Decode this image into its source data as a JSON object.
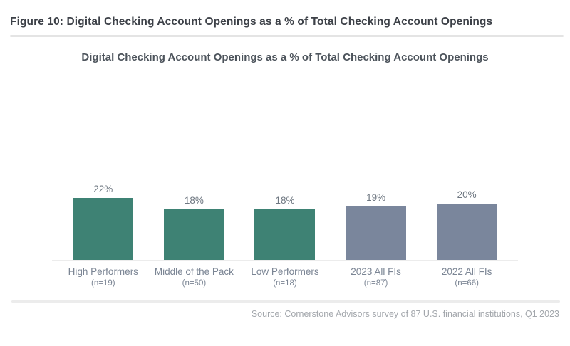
{
  "header": {
    "figure_title": "Figure 10: Digital Checking Account Openings as a % of Total Checking Account Openings"
  },
  "chart_data": {
    "type": "bar",
    "title": "Digital Checking Account Openings as a % of Total Checking Account Openings",
    "categories": [
      "High Performers",
      "Middle of the Pack",
      "Low Performers",
      "2023 All FIs",
      "2022 All FIs"
    ],
    "sample_sizes": [
      "(n=19)",
      "(n=50)",
      "(n=18)",
      "(n=87)",
      "(n=66)"
    ],
    "values": [
      22,
      18,
      18,
      19,
      20
    ],
    "value_labels": [
      "22%",
      "18%",
      "18%",
      "19%",
      "20%"
    ],
    "bar_colors": [
      "#3E8274",
      "#3E8274",
      "#3E8274",
      "#7A869C",
      "#7A869C"
    ],
    "xlabel": "",
    "ylabel": "",
    "ylim": [
      0,
      25
    ],
    "grid": false,
    "legend": false,
    "data_labels_position": "above-bars"
  },
  "colors": {
    "teal_accent": "#3E8274",
    "slate_accent": "#7A869C",
    "title_text": "#3d4148",
    "axis_text": "#7b8594",
    "source_text": "#a3a7ac"
  },
  "footer": {
    "source": "Source: Cornerstone Advisors survey of 87 U.S. financial institutions, Q1 2023"
  }
}
